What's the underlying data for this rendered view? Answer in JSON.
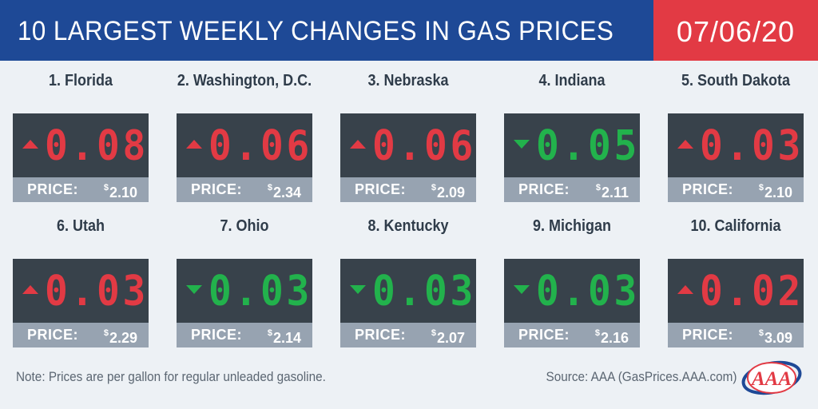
{
  "header": {
    "title": "10 LARGEST WEEKLY CHANGES IN GAS PRICES",
    "date": "07/06/20"
  },
  "colors": {
    "header_blue": "#1e4996",
    "date_red": "#e23a44",
    "increase_red": "#e23a44",
    "decrease_green": "#22b24c",
    "display_dark": "#38424b",
    "price_bar_gray": "#97a3b1"
  },
  "price_label": "PRICE:",
  "currency_symbol": "$",
  "cards": [
    {
      "state": "1. Florida",
      "direction": "up",
      "change": "0.08",
      "price": "2.10"
    },
    {
      "state": "2. Washington, D.C.",
      "direction": "up",
      "change": "0.06",
      "price": "2.34"
    },
    {
      "state": "3. Nebraska",
      "direction": "up",
      "change": "0.06",
      "price": "2.09"
    },
    {
      "state": "4. Indiana",
      "direction": "down",
      "change": "0.05",
      "price": "2.11"
    },
    {
      "state": "5. South Dakota",
      "direction": "up",
      "change": "0.03",
      "price": "2.10"
    },
    {
      "state": "6. Utah",
      "direction": "up",
      "change": "0.03",
      "price": "2.29"
    },
    {
      "state": "7. Ohio",
      "direction": "down",
      "change": "0.03",
      "price": "2.14"
    },
    {
      "state": "8. Kentucky",
      "direction": "down",
      "change": "0.03",
      "price": "2.07"
    },
    {
      "state": "9. Michigan",
      "direction": "down",
      "change": "0.03",
      "price": "2.16"
    },
    {
      "state": "10. California",
      "direction": "up",
      "change": "0.02",
      "price": "3.09"
    }
  ],
  "footer": {
    "note": "Note: Prices are per gallon for regular unleaded gasoline.",
    "source": "Source: AAA (GasPrices.AAA.com)",
    "logo_text": "AAA"
  }
}
